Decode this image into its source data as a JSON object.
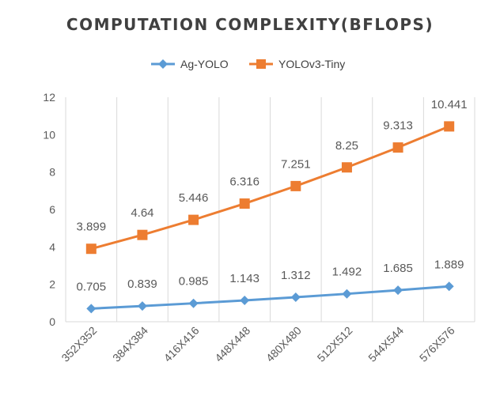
{
  "chart_data": {
    "type": "line",
    "title": "COMPUTATION COMPLEXITY(BFLOPS)",
    "xlabel": "",
    "ylabel": "",
    "categories": [
      "352X352",
      "384X384",
      "416X416",
      "448X448",
      "480X480",
      "512X512",
      "544X544",
      "576X576"
    ],
    "ylim": [
      0,
      12
    ],
    "yticks": [
      0,
      2,
      4,
      6,
      8,
      10,
      12
    ],
    "grid": "vertical",
    "legend_position": "top",
    "series": [
      {
        "name": "Ag-YOLO",
        "color": "#5B9BD5",
        "marker": "diamond",
        "values": [
          0.705,
          0.839,
          0.985,
          1.143,
          1.312,
          1.492,
          1.685,
          1.889
        ],
        "labels": [
          "0.705",
          "0.839",
          "0.985",
          "1.143",
          "1.312",
          "1.492",
          "1.685",
          "1.889"
        ]
      },
      {
        "name": "YOLOv3-Tiny",
        "color": "#ED7D31",
        "marker": "square",
        "values": [
          3.899,
          4.64,
          5.446,
          6.316,
          7.251,
          8.25,
          9.313,
          10.441
        ],
        "labels": [
          "3.899",
          "4.64",
          "5.446",
          "6.316",
          "7.251",
          "8.25",
          "9.313",
          "10.441"
        ]
      }
    ]
  }
}
